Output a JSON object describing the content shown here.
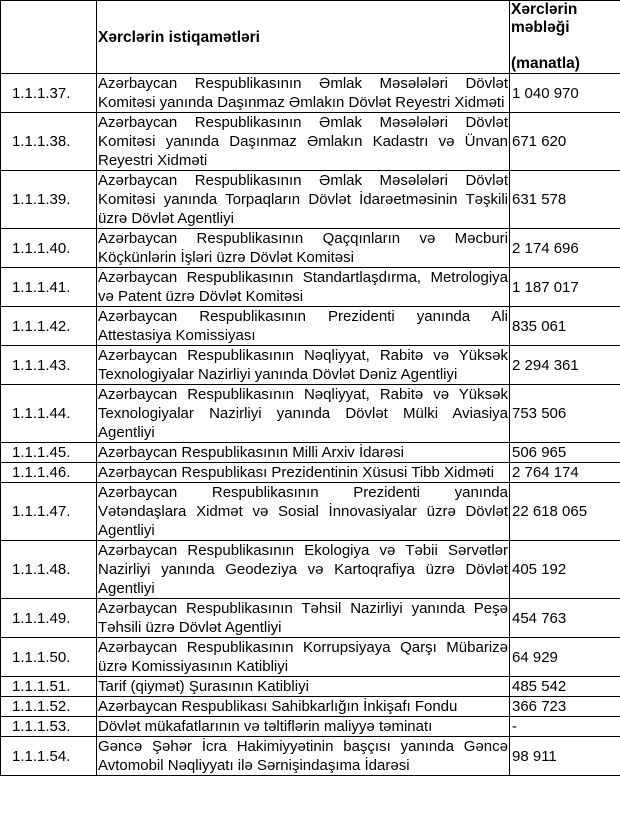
{
  "colors": {
    "border": "#000000",
    "text": "#000000",
    "background": "#ffffff"
  },
  "table": {
    "headers": {
      "index": "",
      "directions": "Xərclərin istiqamətləri",
      "amount_title": "Xərclərin məbləği",
      "amount_unit": "(manatla)"
    },
    "rows": [
      {
        "index": "1.1.1.37.",
        "direction": "Azərbaycan Respublikasının Əmlak Məsələləri Dövlət Komitəsi yanında Daşınmaz Əmlakın Dövlət Reyestri Xidməti",
        "amount": "1 040 970"
      },
      {
        "index": "1.1.1.38.",
        "direction": "Azərbaycan Respublikasının Əmlak Məsələləri Dövlət Komitəsi yanında Daşınmaz Əmlakın Kadastrı və Ünvan Reyestri Xidməti",
        "amount": "671 620"
      },
      {
        "index": "1.1.1.39.",
        "direction": "Azərbaycan Respublikasının Əmlak Məsələləri Dövlət Komitəsi yanında Torpaqların Dövlət İdarəetməsinin Təşkili üzrə Dövlət Agentliyi",
        "amount": "631 578"
      },
      {
        "index": "1.1.1.40.",
        "direction": "Azərbaycan Respublikasının Qaçqınların və Məcburi Köçkünlərin İşləri üzrə Dövlət Komitəsi",
        "amount": "2 174 696"
      },
      {
        "index": "1.1.1.41.",
        "direction": "Azərbaycan Respublikasının Standartlaşdırma, Metrologiya və Patent üzrə Dövlət Komitəsi",
        "amount": "1 187 017"
      },
      {
        "index": "1.1.1.42.",
        "direction": "Azərbaycan Respublikasının Prezidenti yanında Ali Attestasiya Komissiyası",
        "amount": "835 061"
      },
      {
        "index": "1.1.1.43.",
        "direction": "Azərbaycan Respublikasının Nəqliyyat, Rabitə və Yüksək Texnologiyalar Nazirliyi yanında Dövlət Dəniz Agentliyi",
        "amount": "2 294 361"
      },
      {
        "index": "1.1.1.44.",
        "direction": "Azərbaycan Respublikasının Nəqliyyat, Rabitə və Yüksək Texnologiyalar Nazirliyi yanında Dövlət Mülki Aviasiya Agentliyi",
        "amount": "753 506"
      },
      {
        "index": "1.1.1.45.",
        "direction": "Azərbaycan Respublikasının Milli Arxiv İdarəsi",
        "amount": "506 965"
      },
      {
        "index": "1.1.1.46.",
        "direction": "Azərbaycan Respublikası Prezidentinin Xüsusi Tibb Xidməti",
        "amount": "2 764 174"
      },
      {
        "index": "1.1.1.47.",
        "direction": "Azərbaycan Respublikasının Prezidenti yanında Vətəndaşlara Xidmət və Sosial İnnovasiyalar üzrə Dövlət Agentliyi",
        "amount": "22 618 065"
      },
      {
        "index": "1.1.1.48.",
        "direction": "Azərbaycan Respublikasının Ekologiya və Təbii Sərvətlər Nazirliyi yanında Geodeziya və Kartoqrafiya üzrə Dövlət Agentliyi",
        "amount": "405 192"
      },
      {
        "index": "1.1.1.49.",
        "direction": "Azərbaycan Respublikasının Təhsil Nazirliyi yanında Peşə Təhsili üzrə Dövlət Agentliyi",
        "amount": "454 763"
      },
      {
        "index": "1.1.1.50.",
        "direction": "Azərbaycan Respublikasının Korrupsiyaya Qarşı Mübarizə üzrə Komissiyasının Katibliyi",
        "amount": "64 929"
      },
      {
        "index": "1.1.1.51.",
        "direction": "Tarif (qiymət) Şurasının Katibliyi",
        "amount": "485 542"
      },
      {
        "index": "1.1.1.52.",
        "direction": "Azərbaycan Respublikası Sahibkarlığın İnkişafı Fondu",
        "amount": "366 723"
      },
      {
        "index": "1.1.1.53.",
        "direction": "Dövlət mükafatlarının və təltiflərin maliyyə təminatı",
        "amount": "-"
      },
      {
        "index": "1.1.1.54.",
        "direction": "Gəncə Şəhər İcra Hakimiyyətinin başçısı yanında Gəncə Avtomobil Nəqliyyatı ilə Sərnişindaşıma İdarəsi",
        "amount": "98 911"
      }
    ]
  }
}
